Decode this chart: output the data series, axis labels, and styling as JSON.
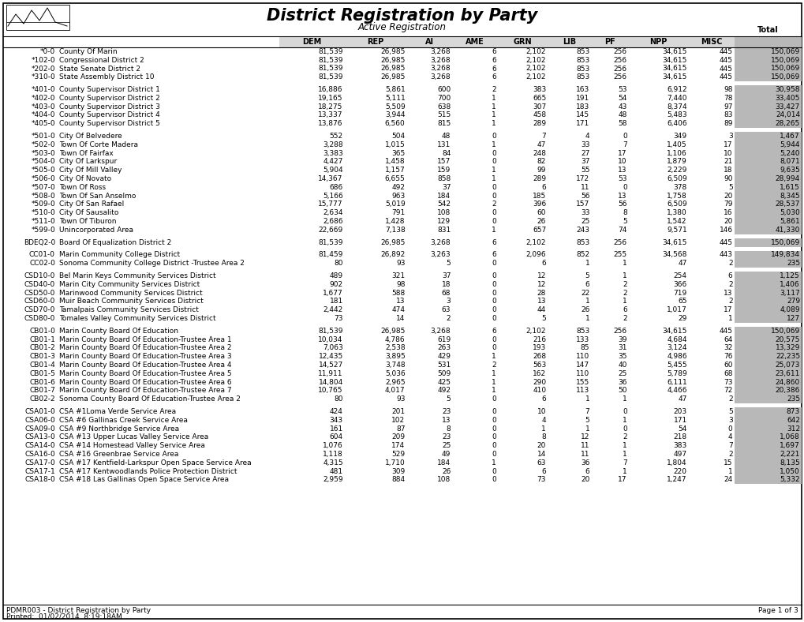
{
  "title": "District Registration by Party",
  "subtitle": "Active Registration",
  "columns": [
    "DEM",
    "REP",
    "AI",
    "AME",
    "GRN",
    "LIB",
    "PF",
    "NPP",
    "MISC",
    "Total"
  ],
  "rows": [
    [
      "*0-0",
      "County Of Marin",
      "81,539",
      "26,985",
      "3,268",
      "6",
      "2,102",
      "853",
      "256",
      "34,615",
      "445",
      "150,069"
    ],
    [
      "*102-0",
      "Congressional District 2",
      "81,539",
      "26,985",
      "3,268",
      "6",
      "2,102",
      "853",
      "256",
      "34,615",
      "445",
      "150,069"
    ],
    [
      "*202-0",
      "State Senate District 2",
      "81,539",
      "26,985",
      "3,268",
      "6",
      "2,102",
      "853",
      "256",
      "34,615",
      "445",
      "150,069"
    ],
    [
      "*310-0",
      "State Assembly District 10",
      "81,539",
      "26,985",
      "3,268",
      "6",
      "2,102",
      "853",
      "256",
      "34,615",
      "445",
      "150,069"
    ],
    [
      "",
      "",
      "",
      "",
      "",
      "",
      "",
      "",
      "",
      "",
      "",
      ""
    ],
    [
      "*401-0",
      "County Supervisor District 1",
      "16,886",
      "5,861",
      "600",
      "2",
      "383",
      "163",
      "53",
      "6,912",
      "98",
      "30,958"
    ],
    [
      "*402-0",
      "County Supervisor District 2",
      "19,165",
      "5,111",
      "700",
      "1",
      "665",
      "191",
      "54",
      "7,440",
      "78",
      "33,405"
    ],
    [
      "*403-0",
      "County Supervisor District 3",
      "18,275",
      "5,509",
      "638",
      "1",
      "307",
      "183",
      "43",
      "8,374",
      "97",
      "33,427"
    ],
    [
      "*404-0",
      "County Supervisor District 4",
      "13,337",
      "3,944",
      "515",
      "1",
      "458",
      "145",
      "48",
      "5,483",
      "83",
      "24,014"
    ],
    [
      "*405-0",
      "County Supervisor District 5",
      "13,876",
      "6,560",
      "815",
      "1",
      "289",
      "171",
      "58",
      "6,406",
      "89",
      "28,265"
    ],
    [
      "",
      "",
      "",
      "",
      "",
      "",
      "",
      "",
      "",
      "",
      "",
      ""
    ],
    [
      "*501-0",
      "City Of Belvedere",
      "552",
      "504",
      "48",
      "0",
      "7",
      "4",
      "0",
      "349",
      "3",
      "1,467"
    ],
    [
      "*502-0",
      "Town Of Corte Madera",
      "3,288",
      "1,015",
      "131",
      "1",
      "47",
      "33",
      "7",
      "1,405",
      "17",
      "5,944"
    ],
    [
      "*503-0",
      "Town Of Fairfax",
      "3,383",
      "365",
      "84",
      "0",
      "248",
      "27",
      "17",
      "1,106",
      "10",
      "5,240"
    ],
    [
      "*504-0",
      "City Of Larkspur",
      "4,427",
      "1,458",
      "157",
      "0",
      "82",
      "37",
      "10",
      "1,879",
      "21",
      "8,071"
    ],
    [
      "*505-0",
      "City Of Mill Valley",
      "5,904",
      "1,157",
      "159",
      "1",
      "99",
      "55",
      "13",
      "2,229",
      "18",
      "9,635"
    ],
    [
      "*506-0",
      "City Of Novato",
      "14,367",
      "6,655",
      "858",
      "1",
      "289",
      "172",
      "53",
      "6,509",
      "90",
      "28,994"
    ],
    [
      "*507-0",
      "Town Of Ross",
      "686",
      "492",
      "37",
      "0",
      "6",
      "11",
      "0",
      "378",
      "5",
      "1,615"
    ],
    [
      "*508-0",
      "Town Of San Anselmo",
      "5,166",
      "963",
      "184",
      "0",
      "185",
      "56",
      "13",
      "1,758",
      "20",
      "8,345"
    ],
    [
      "*509-0",
      "City Of San Rafael",
      "15,777",
      "5,019",
      "542",
      "2",
      "396",
      "157",
      "56",
      "6,509",
      "79",
      "28,537"
    ],
    [
      "*510-0",
      "City Of Sausalito",
      "2,634",
      "791",
      "108",
      "0",
      "60",
      "33",
      "8",
      "1,380",
      "16",
      "5,030"
    ],
    [
      "*511-0",
      "Town Of Tiburon",
      "2,686",
      "1,428",
      "129",
      "0",
      "26",
      "25",
      "5",
      "1,542",
      "20",
      "5,861"
    ],
    [
      "*599-0",
      "Unincorporated Area",
      "22,669",
      "7,138",
      "831",
      "1",
      "657",
      "243",
      "74",
      "9,571",
      "146",
      "41,330"
    ],
    [
      "",
      "",
      "",
      "",
      "",
      "",
      "",
      "",
      "",
      "",
      "",
      ""
    ],
    [
      "BDEQ2-0",
      "Board Of Equalization District 2",
      "81,539",
      "26,985",
      "3,268",
      "6",
      "2,102",
      "853",
      "256",
      "34,615",
      "445",
      "150,069"
    ],
    [
      "",
      "",
      "",
      "",
      "",
      "",
      "",
      "",
      "",
      "",
      "",
      ""
    ],
    [
      "CC01-0",
      "Marin Community College District",
      "81,459",
      "26,892",
      "3,263",
      "6",
      "2,096",
      "852",
      "255",
      "34,568",
      "443",
      "149,834"
    ],
    [
      "CC02-0",
      "Sonoma Community College District -Trustee Area 2",
      "80",
      "93",
      "5",
      "0",
      "6",
      "1",
      "1",
      "47",
      "2",
      "235"
    ],
    [
      "",
      "",
      "",
      "",
      "",
      "",
      "",
      "",
      "",
      "",
      "",
      ""
    ],
    [
      "CSD10-0",
      "Bel Marin Keys Community Services District",
      "489",
      "321",
      "37",
      "0",
      "12",
      "5",
      "1",
      "254",
      "6",
      "1,125"
    ],
    [
      "CSD40-0",
      "Marin City Community Services District",
      "902",
      "98",
      "18",
      "0",
      "12",
      "6",
      "2",
      "366",
      "2",
      "1,406"
    ],
    [
      "CSD50-0",
      "Marinwood Community Services District",
      "1,677",
      "588",
      "68",
      "0",
      "28",
      "22",
      "2",
      "719",
      "13",
      "3,117"
    ],
    [
      "CSD60-0",
      "Muir Beach Community Services District",
      "181",
      "13",
      "3",
      "0",
      "13",
      "1",
      "1",
      "65",
      "2",
      "279"
    ],
    [
      "CSD70-0",
      "Tamalpais Community Services District",
      "2,442",
      "474",
      "63",
      "0",
      "44",
      "26",
      "6",
      "1,017",
      "17",
      "4,089"
    ],
    [
      "CSD80-0",
      "Tomales Valley Community Services District",
      "73",
      "14",
      "2",
      "0",
      "5",
      "1",
      "2",
      "29",
      "1",
      "127"
    ],
    [
      "",
      "",
      "",
      "",
      "",
      "",
      "",
      "",
      "",
      "",
      "",
      ""
    ],
    [
      "CB01-0",
      "Marin County Board Of Education",
      "81,539",
      "26,985",
      "3,268",
      "6",
      "2,102",
      "853",
      "256",
      "34,615",
      "445",
      "150,069"
    ],
    [
      "CB01-1",
      "Marin County Board Of Education-Trustee Area 1",
      "10,034",
      "4,786",
      "619",
      "0",
      "216",
      "133",
      "39",
      "4,684",
      "64",
      "20,575"
    ],
    [
      "CB01-2",
      "Marin County Board Of Education-Trustee Area 2",
      "7,063",
      "2,538",
      "263",
      "0",
      "193",
      "85",
      "31",
      "3,124",
      "32",
      "13,329"
    ],
    [
      "CB01-3",
      "Marin County Board Of Education-Trustee Area 3",
      "12,435",
      "3,895",
      "429",
      "1",
      "268",
      "110",
      "35",
      "4,986",
      "76",
      "22,235"
    ],
    [
      "CB01-4",
      "Marin County Board Of Education-Trustee Area 4",
      "14,527",
      "3,748",
      "531",
      "2",
      "563",
      "147",
      "40",
      "5,455",
      "60",
      "25,073"
    ],
    [
      "CB01-5",
      "Marin County Board Of Education-Trustee Area 5",
      "11,911",
      "5,036",
      "509",
      "1",
      "162",
      "110",
      "25",
      "5,789",
      "68",
      "23,611"
    ],
    [
      "CB01-6",
      "Marin County Board Of Education-Trustee Area 6",
      "14,804",
      "2,965",
      "425",
      "1",
      "290",
      "155",
      "36",
      "6,111",
      "73",
      "24,860"
    ],
    [
      "CB01-7",
      "Marin County Board Of Education-Trustee Area 7",
      "10,765",
      "4,017",
      "492",
      "1",
      "410",
      "113",
      "50",
      "4,466",
      "72",
      "20,386"
    ],
    [
      "CB02-2",
      "Sonoma County Board Of Education-Trustee Area 2",
      "80",
      "93",
      "5",
      "0",
      "6",
      "1",
      "1",
      "47",
      "2",
      "235"
    ],
    [
      "",
      "",
      "",
      "",
      "",
      "",
      "",
      "",
      "",
      "",
      "",
      ""
    ],
    [
      "CSA01-0",
      "CSA #1Loma Verde Service Area",
      "424",
      "201",
      "23",
      "0",
      "10",
      "7",
      "0",
      "203",
      "5",
      "873"
    ],
    [
      "CSA06-0",
      "CSA #6 Gallinas Creek Service Area",
      "343",
      "102",
      "13",
      "0",
      "4",
      "5",
      "1",
      "171",
      "3",
      "642"
    ],
    [
      "CSA09-0",
      "CSA #9 Northbridge Service Area",
      "161",
      "87",
      "8",
      "0",
      "1",
      "1",
      "0",
      "54",
      "0",
      "312"
    ],
    [
      "CSA13-0",
      "CSA #13 Upper Lucas Valley Service Area",
      "604",
      "209",
      "23",
      "0",
      "8",
      "12",
      "2",
      "218",
      "4",
      "1,068"
    ],
    [
      "CSA14-0",
      "CSA #14 Homestead Valley Service Area",
      "1,076",
      "174",
      "25",
      "0",
      "20",
      "11",
      "1",
      "383",
      "7",
      "1,697"
    ],
    [
      "CSA16-0",
      "CSA #16 Greenbrae Service Area",
      "1,118",
      "529",
      "49",
      "0",
      "14",
      "11",
      "1",
      "497",
      "2",
      "2,221"
    ],
    [
      "CSA17-0",
      "CSA #17 Kentfield-Larkspur Open Space Service Area",
      "4,315",
      "1,710",
      "184",
      "1",
      "63",
      "36",
      "7",
      "1,804",
      "15",
      "8,135"
    ],
    [
      "CSA17-1",
      "CSA #17 Kentwoodlands Police Protection District",
      "481",
      "309",
      "26",
      "0",
      "6",
      "6",
      "1",
      "220",
      "1",
      "1,050"
    ],
    [
      "CSA18-0",
      "CSA #18 Las Gallinas Open Space Service Area",
      "2,959",
      "884",
      "108",
      "0",
      "73",
      "20",
      "17",
      "1,247",
      "24",
      "5,332"
    ]
  ],
  "footer_left": "PDMR003 - District Registration by Party",
  "footer_date": "Printed:  01/02/2014  8:19:18AM",
  "footer_right": "Page 1 of 3",
  "total_col_bg": "#b8b8b8",
  "header_bg": "#d8d8d8",
  "bg_color": "#ffffff",
  "font_size": 6.5,
  "header_font_size": 7.0,
  "title_fontsize": 15,
  "subtitle_fontsize": 8.5,
  "outer_border_lw": 1.2
}
